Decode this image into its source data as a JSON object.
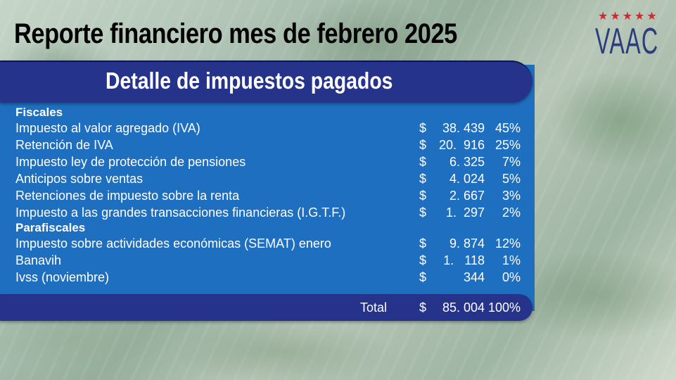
{
  "title": "Reporte financiero mes de febrero 2025",
  "logo": {
    "stars": [
      "★",
      "★",
      "★",
      "★",
      "★"
    ],
    "text": "VAAC",
    "star_color": "#d62630",
    "text_color": "#2b3d7a"
  },
  "subtitle": "Detalle de impuestos pagados",
  "colors": {
    "panel": "#1f6fc0",
    "bar": "#26338a"
  },
  "sections": [
    {
      "heading": "Fiscales",
      "rows": [
        {
          "label": "Impuesto al valor agregado (IVA)",
          "symbol": "$",
          "amount": "38. 439",
          "pct": "45%"
        },
        {
          "label": "Retención de IVA",
          "symbol": "$",
          "amount": "20.  916",
          "pct": "25%"
        },
        {
          "label": "Impuesto ley de protección de pensiones",
          "symbol": "$",
          "amount": "6. 325",
          "pct": "7%"
        },
        {
          "label": "Anticipos sobre ventas",
          "symbol": "$",
          "amount": "4. 024",
          "pct": "5%"
        },
        {
          "label": "Retenciones de impuesto sobre la renta",
          "symbol": "$",
          "amount": "2. 667",
          "pct": "3%"
        },
        {
          "label": "Impuesto a las grandes transacciones financieras (I.G.T.F.)",
          "symbol": "$",
          "amount": "1.  297",
          "pct": "2%"
        }
      ]
    },
    {
      "heading": "Parafiscales",
      "rows": [
        {
          "label": "Impuesto sobre actividades económicas (SEMAT) enero",
          "symbol": "$",
          "amount": "9. 874",
          "pct": "12%"
        },
        {
          "label": "Banavih",
          "symbol": "$",
          "amount": "1.   118",
          "pct": "1%"
        },
        {
          "label": "Ivss (noviembre)",
          "symbol": "$",
          "amount": "344",
          "pct": "0%"
        }
      ]
    }
  ],
  "total": {
    "label": "Total",
    "symbol": "$",
    "amount": "85. 004",
    "pct": "100%"
  }
}
